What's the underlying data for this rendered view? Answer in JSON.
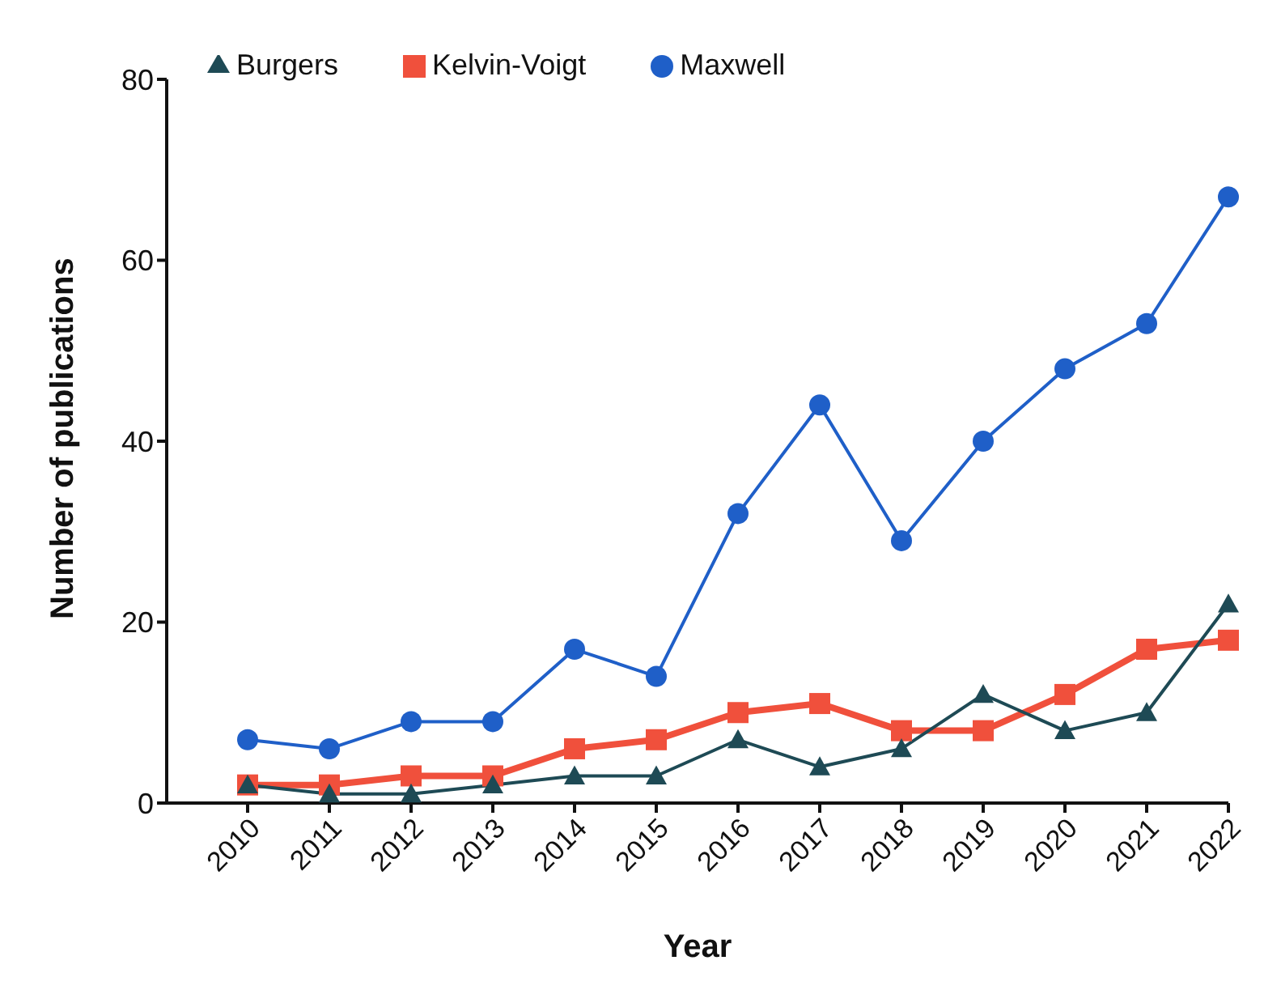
{
  "chart_data": {
    "type": "line",
    "xlabel": "Year",
    "ylabel": "Number of publications",
    "categories": [
      "2010",
      "2011",
      "2012",
      "2013",
      "2014",
      "2015",
      "2016",
      "2017",
      "2018",
      "2019",
      "2020",
      "2021",
      "2022"
    ],
    "series": [
      {
        "name": "Maxwell",
        "color": "#1f5fc8",
        "marker": "circle",
        "values": [
          7,
          6,
          9,
          9,
          17,
          14,
          32,
          44,
          29,
          40,
          48,
          53,
          67
        ]
      },
      {
        "name": "Kelvin-Voigt",
        "color": "#f0503c",
        "marker": "square",
        "values": [
          2,
          2,
          3,
          3,
          6,
          7,
          10,
          11,
          8,
          8,
          12,
          17,
          18
        ]
      },
      {
        "name": "Burgers",
        "color": "#1e4a55",
        "marker": "triangle",
        "values": [
          2,
          1,
          1,
          2,
          3,
          3,
          7,
          4,
          6,
          12,
          8,
          10,
          22
        ]
      }
    ],
    "ylim": [
      0,
      80
    ],
    "yticks": [
      0,
      20,
      40,
      60,
      80
    ],
    "grid": false,
    "legend": "top left"
  }
}
